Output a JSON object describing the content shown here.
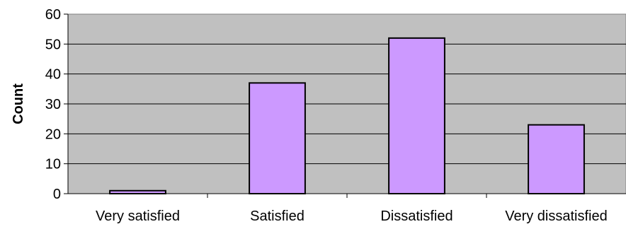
{
  "chart_data": {
    "type": "bar",
    "categories": [
      "Very satisfied",
      "Satisfied",
      "Dissatisfied",
      "Very dissatisfied"
    ],
    "values": [
      1,
      37,
      52,
      23
    ],
    "title": "",
    "xlabel": "",
    "ylabel": "Count",
    "ylim": [
      0,
      60
    ],
    "yticks": [
      "0",
      "10",
      "20",
      "30",
      "40",
      "50",
      "60"
    ],
    "grid": true,
    "legend": "none"
  },
  "colors": {
    "bar_fill": "#cc99ff",
    "plot_background": "#c0c0c0",
    "gridline": "#000000"
  }
}
